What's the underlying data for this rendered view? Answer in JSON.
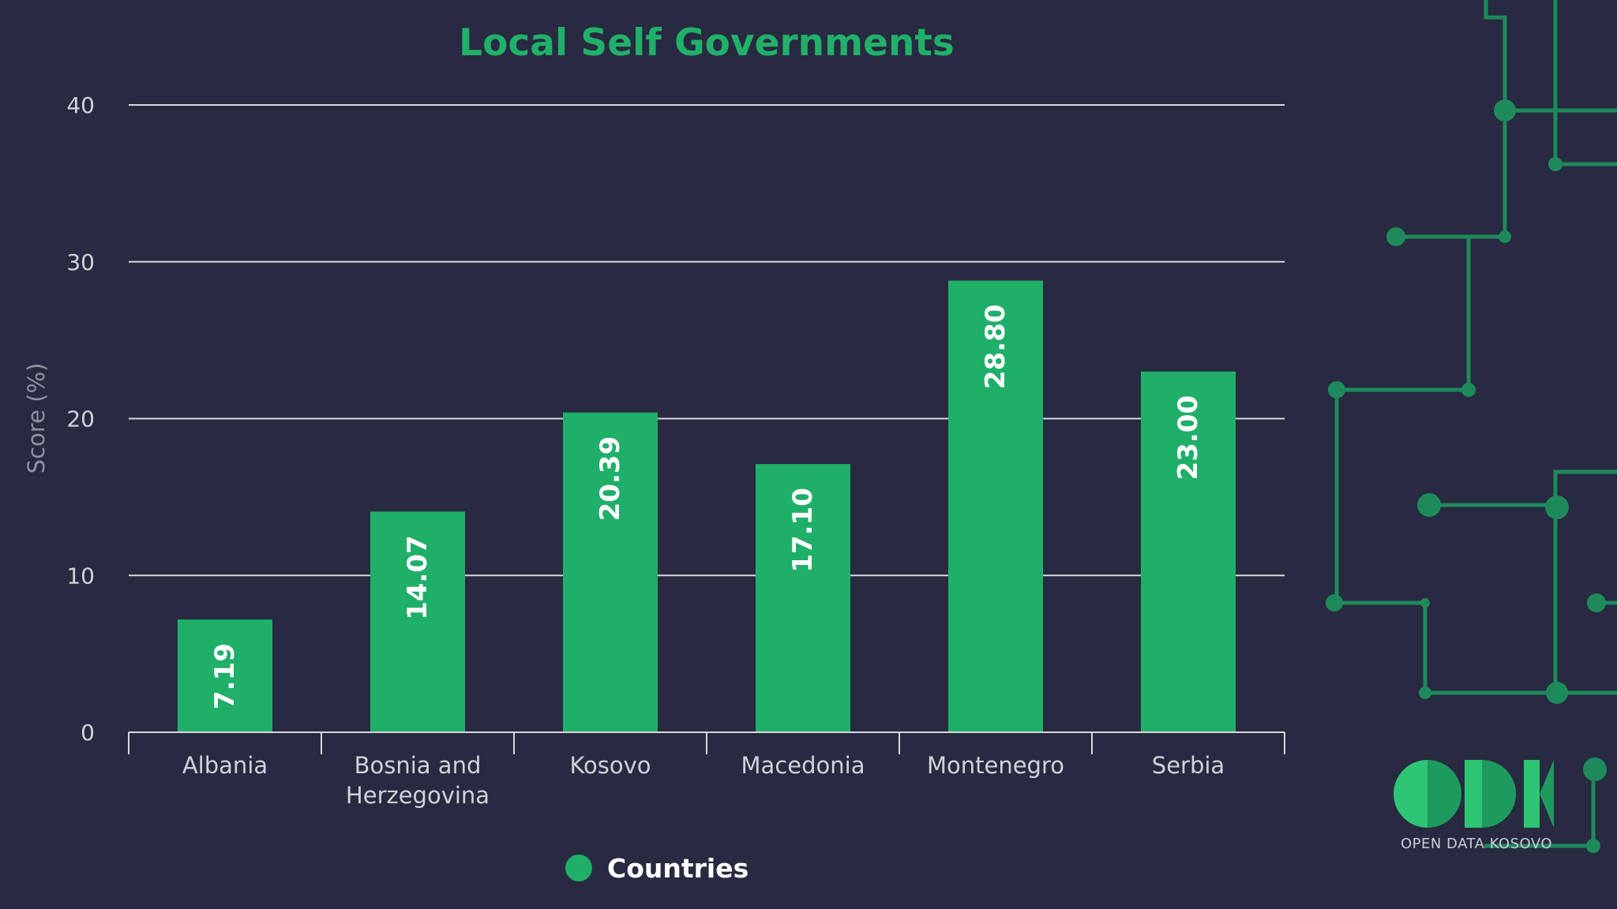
{
  "colors": {
    "background": "#272a40",
    "bar": "#1faf69",
    "accent": "#21b06a",
    "grid": "#d6d8de",
    "circuit": "#1e8a5c",
    "logo_light": "#2ec574",
    "logo_dark": "#1f9a5f"
  },
  "legend": {
    "label": "Countries",
    "icon": "circle-marker-icon"
  },
  "brand": {
    "logo_text": "ODK",
    "tagline": "OPEN DATA KOSOVO"
  },
  "chart_data": {
    "type": "bar",
    "title": "Local Self Governments",
    "xlabel": "",
    "ylabel": "Score (%)",
    "ylim": [
      0,
      40
    ],
    "yticks": [
      0,
      10,
      20,
      30,
      40
    ],
    "grid": true,
    "legend_position": "bottom-center",
    "categories": [
      "Albania",
      "Bosnia and Herzegovina",
      "Kosovo",
      "Macedonia",
      "Montenegro",
      "Serbia"
    ],
    "category_lines": [
      [
        "Albania"
      ],
      [
        "Bosnia and",
        "Herzegovina"
      ],
      [
        "Kosovo"
      ],
      [
        "Macedonia"
      ],
      [
        "Montenegro"
      ],
      [
        "Serbia"
      ]
    ],
    "series": [
      {
        "name": "Countries",
        "values": [
          7.19,
          14.07,
          20.39,
          17.1,
          28.8,
          23.0
        ],
        "labels": [
          "7.19",
          "14.07",
          "20.39",
          "17.10",
          "28.80",
          "23.00"
        ]
      }
    ]
  }
}
